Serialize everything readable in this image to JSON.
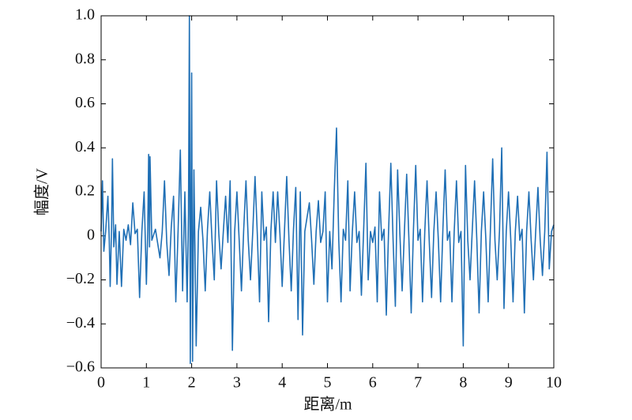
{
  "chart_data": {
    "type": "line",
    "xlabel": "距离/m",
    "ylabel": "幅度/V",
    "color": "#1f6fb5",
    "xlim": [
      0,
      10
    ],
    "xticks": [
      0,
      1,
      2,
      3,
      4,
      5,
      6,
      7,
      8,
      9,
      10
    ],
    "ylim": [
      -0.6,
      1
    ],
    "yticks": [
      {
        "value": -0.6,
        "label": "−0.6"
      },
      {
        "value": -0.4,
        "label": "−0.4"
      },
      {
        "value": -0.2,
        "label": "−0.2"
      },
      0,
      0.2,
      0.4,
      0.6,
      0.8,
      {
        "value": 1,
        "label": "1.0"
      }
    ],
    "x": [
      0,
      0.03,
      0.06,
      0.1,
      0.15,
      0.18,
      0.2,
      0.23,
      0.25,
      0.28,
      0.32,
      0.35,
      0.4,
      0.45,
      0.5,
      0.55,
      0.6,
      0.65,
      0.7,
      0.75,
      0.8,
      0.85,
      0.9,
      0.95,
      1.0,
      1.03,
      1.05,
      1.07,
      1.08,
      1.12,
      1.2,
      1.3,
      1.35,
      1.4,
      1.45,
      1.5,
      1.55,
      1.6,
      1.65,
      1.7,
      1.75,
      1.8,
      1.85,
      1.9,
      1.93,
      1.95,
      1.97,
      2.0,
      2.02,
      2.05,
      2.1,
      2.15,
      2.2,
      2.25,
      2.3,
      2.35,
      2.4,
      2.45,
      2.5,
      2.55,
      2.6,
      2.65,
      2.7,
      2.75,
      2.8,
      2.85,
      2.9,
      2.95,
      3.0,
      3.05,
      3.1,
      3.15,
      3.2,
      3.25,
      3.3,
      3.35,
      3.4,
      3.45,
      3.5,
      3.55,
      3.6,
      3.65,
      3.7,
      3.75,
      3.8,
      3.85,
      3.9,
      3.95,
      4.0,
      4.05,
      4.1,
      4.15,
      4.2,
      4.25,
      4.3,
      4.35,
      4.4,
      4.45,
      4.5,
      4.6,
      4.65,
      4.7,
      4.75,
      4.8,
      4.85,
      4.9,
      4.95,
      5.0,
      5.05,
      5.1,
      5.15,
      5.2,
      5.25,
      5.3,
      5.35,
      5.4,
      5.45,
      5.5,
      5.55,
      5.6,
      5.65,
      5.7,
      5.75,
      5.8,
      5.85,
      5.9,
      5.95,
      6.0,
      6.05,
      6.1,
      6.15,
      6.2,
      6.25,
      6.3,
      6.35,
      6.4,
      6.45,
      6.5,
      6.55,
      6.6,
      6.65,
      6.7,
      6.75,
      6.8,
      6.85,
      6.9,
      6.95,
      7.0,
      7.05,
      7.1,
      7.15,
      7.2,
      7.25,
      7.3,
      7.35,
      7.4,
      7.45,
      7.5,
      7.55,
      7.6,
      7.65,
      7.7,
      7.75,
      7.8,
      7.85,
      7.9,
      7.95,
      8.0,
      8.05,
      8.1,
      8.15,
      8.2,
      8.25,
      8.3,
      8.35,
      8.4,
      8.45,
      8.5,
      8.55,
      8.6,
      8.65,
      8.7,
      8.75,
      8.8,
      8.85,
      8.9,
      8.95,
      9.0,
      9.05,
      9.1,
      9.15,
      9.2,
      9.25,
      9.3,
      9.35,
      9.4,
      9.45,
      9.5,
      9.55,
      9.6,
      9.65,
      9.7,
      9.75,
      9.8,
      9.85,
      9.9,
      9.95,
      10.0
    ],
    "values": [
      0.02,
      0.25,
      -0.07,
      0.02,
      0.18,
      -0.02,
      -0.23,
      0.03,
      0.35,
      -0.05,
      0.05,
      -0.22,
      0.02,
      -0.23,
      0.03,
      -0.02,
      0.05,
      -0.04,
      0.15,
      0.01,
      0.03,
      -0.28,
      0.02,
      0.2,
      -0.22,
      0.02,
      0.37,
      -0.05,
      0.36,
      -0.02,
      0.03,
      -0.1,
      0.02,
      0.25,
      -0.03,
      -0.18,
      0.04,
      0.18,
      -0.3,
      0.02,
      0.39,
      -0.25,
      0.2,
      -0.3,
      0.1,
      1.0,
      -0.58,
      0.74,
      -0.57,
      0.3,
      -0.5,
      0.02,
      0.13,
      -0.02,
      -0.25,
      0.03,
      0.2,
      -0.02,
      -0.2,
      0.25,
      0.01,
      -0.15,
      0.02,
      0.18,
      -0.03,
      0.25,
      -0.52,
      0.02,
      0.2,
      -0.02,
      -0.25,
      0.03,
      0.25,
      -0.02,
      -0.2,
      0.02,
      0.27,
      0.01,
      -0.3,
      0.2,
      -0.02,
      0.04,
      -0.39,
      0.02,
      0.2,
      -0.03,
      0.2,
      0.01,
      -0.23,
      0.02,
      0.27,
      -0.02,
      -0.25,
      0.03,
      0.22,
      -0.38,
      0.2,
      -0.45,
      0.02,
      0.15,
      -0.02,
      -0.22,
      0.02,
      0.16,
      -0.03,
      0.02,
      0.2,
      -0.3,
      0.02,
      -0.15,
      0.2,
      0.49,
      -0.02,
      -0.3,
      0.03,
      -0.02,
      0.25,
      -0.25,
      0.02,
      0.2,
      -0.03,
      0.02,
      -0.27,
      0.03,
      0.33,
      -0.2,
      0.02,
      -0.03,
      0.04,
      -0.3,
      0.2,
      -0.02,
      0.03,
      -0.36,
      0.02,
      0.33,
      -0.02,
      -0.32,
      0.3,
      0.01,
      -0.25,
      0.02,
      0.28,
      -0.02,
      -0.35,
      0.03,
      0.32,
      -0.02,
      0.03,
      -0.3,
      0.02,
      0.25,
      -0.03,
      -0.28,
      0.02,
      0.2,
      -0.02,
      -0.3,
      0.03,
      0.3,
      -0.02,
      0.02,
      -0.3,
      0.02,
      0.25,
      -0.03,
      0.02,
      -0.5,
      0.32,
      -0.02,
      -0.2,
      0.03,
      0.25,
      -0.02,
      -0.35,
      0.02,
      0.2,
      -0.02,
      -0.3,
      0.03,
      0.35,
      -0.02,
      -0.2,
      0.02,
      0.4,
      -0.33,
      0.02,
      0.2,
      -0.02,
      -0.3,
      0.02,
      0.18,
      -0.02,
      0.03,
      -0.35,
      0.02,
      0.2,
      -0.02,
      -0.2,
      0.02,
      0.22,
      -0.02,
      -0.18,
      0.02,
      0.38,
      -0.15,
      0.02,
      0.05
    ]
  }
}
